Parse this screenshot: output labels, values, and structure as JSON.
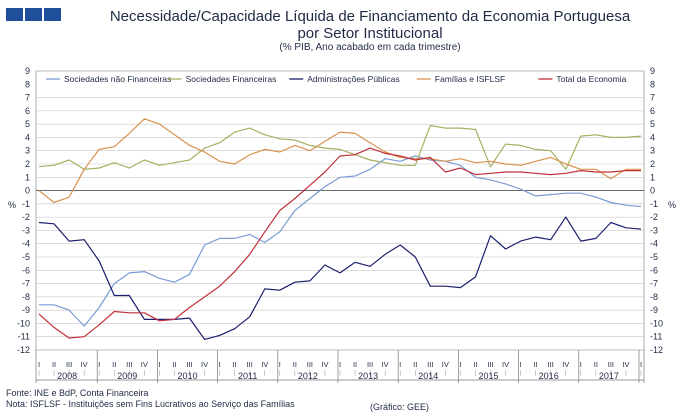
{
  "header": {
    "title_line1": "Necessidade/Capacidade Líquida de Financiamento da Economia Portuguesa",
    "title_line2": "por Setor Institucional",
    "subtitle": "(% PIB, Ano acabado em cada trimestre)"
  },
  "footer": {
    "source": "Fonte: INE e BdP, Conta Financeira",
    "note": "Nota: ISFLSF - Instituições sem Fins Lucrativos ao Serviço das Famílias",
    "credit": "(Gráfico: GEE)"
  },
  "colors": {
    "logo": "#1f4e9a",
    "grid": "#c8c8c8",
    "text": "#1f2a44"
  },
  "chart_data": {
    "type": "line",
    "ylabel_left": "%",
    "ylabel_right": "%",
    "ylim": [
      -12,
      9
    ],
    "yticks": [
      -12,
      -11,
      -10,
      -9,
      -8,
      -7,
      -6,
      -5,
      -4,
      -3,
      -2,
      -1,
      0,
      1,
      2,
      3,
      4,
      5,
      6,
      7,
      8,
      9
    ],
    "quarter_labels": [
      "I",
      "II",
      "III",
      "IV"
    ],
    "years": [
      "2008",
      "2009",
      "2010",
      "2011",
      "2012",
      "2013",
      "2014",
      "2015",
      "2016",
      "2017"
    ],
    "grid": "horizontal",
    "legend_position": "top",
    "series": [
      {
        "name": "Sociedades não Financeiras",
        "color": "#7a9bd6",
        "values": [
          -8.6,
          -8.6,
          -9.0,
          -10.2,
          -8.8,
          -7.0,
          -6.2,
          -6.1,
          -6.6,
          -6.9,
          -6.3,
          -4.1,
          -3.6,
          -3.6,
          -3.3,
          -3.9,
          -3.1,
          -1.5,
          -0.6,
          0.3,
          1.0,
          1.1,
          1.6,
          2.4,
          2.2,
          2.6,
          2.3,
          2.2,
          1.9,
          1.0,
          0.8,
          0.5,
          0.1,
          -0.4,
          -0.3,
          -0.2,
          -0.2,
          -0.5,
          -0.9,
          -1.1,
          -1.2
        ]
      },
      {
        "name": "Sociedades Financeiras",
        "color": "#a6b062",
        "values": [
          1.8,
          1.9,
          2.3,
          1.6,
          1.7,
          2.1,
          1.7,
          2.3,
          1.9,
          2.1,
          2.3,
          3.2,
          3.6,
          4.4,
          4.7,
          4.2,
          3.9,
          3.8,
          3.4,
          3.2,
          3.1,
          2.7,
          2.3,
          2.1,
          1.9,
          1.9,
          4.9,
          4.7,
          4.7,
          4.6,
          1.8,
          3.5,
          3.4,
          3.1,
          3.0,
          1.6,
          4.1,
          4.2,
          4.0,
          4.0,
          4.1
        ]
      },
      {
        "name": "Administrações Públicas",
        "color": "#1c1f6e",
        "values": [
          -2.4,
          -2.5,
          -3.8,
          -3.7,
          -5.3,
          -7.9,
          -7.9,
          -9.7,
          -9.7,
          -9.7,
          -9.6,
          -11.2,
          -10.9,
          -10.4,
          -9.5,
          -7.4,
          -7.5,
          -6.9,
          -6.8,
          -5.6,
          -6.2,
          -5.4,
          -5.7,
          -4.8,
          -4.1,
          -5.0,
          -7.2,
          -7.2,
          -7.3,
          -6.5,
          -3.4,
          -4.4,
          -3.8,
          -3.5,
          -3.7,
          -2.0,
          -3.8,
          -3.6,
          -2.4,
          -2.8,
          -2.9
        ]
      },
      {
        "name": "Famílias e ISFLSF",
        "color": "#d9924e",
        "values": [
          0.0,
          -0.9,
          -0.5,
          1.6,
          3.1,
          3.3,
          4.3,
          5.4,
          5.0,
          4.2,
          3.4,
          2.9,
          2.2,
          2.0,
          2.7,
          3.1,
          2.9,
          3.4,
          3.0,
          3.7,
          4.4,
          4.3,
          3.6,
          2.9,
          2.5,
          2.4,
          2.4,
          2.2,
          2.4,
          2.1,
          2.2,
          2.0,
          1.9,
          2.2,
          2.5,
          2.0,
          1.6,
          1.6,
          0.9,
          1.6,
          1.6
        ]
      },
      {
        "name": "Total da Economia",
        "color": "#c0303a",
        "values": [
          -9.3,
          -10.3,
          -11.1,
          -11.0,
          -10.1,
          -9.1,
          -9.2,
          -9.2,
          -9.8,
          -9.7,
          -8.8,
          -8.0,
          -7.2,
          -6.1,
          -4.8,
          -3.1,
          -1.5,
          -0.6,
          0.4,
          1.4,
          2.6,
          2.7,
          3.2,
          2.8,
          2.6,
          2.3,
          2.5,
          1.4,
          1.7,
          1.2,
          1.3,
          1.4,
          1.4,
          1.3,
          1.2,
          1.3,
          1.5,
          1.4,
          1.4,
          1.5,
          1.5
        ]
      }
    ]
  }
}
